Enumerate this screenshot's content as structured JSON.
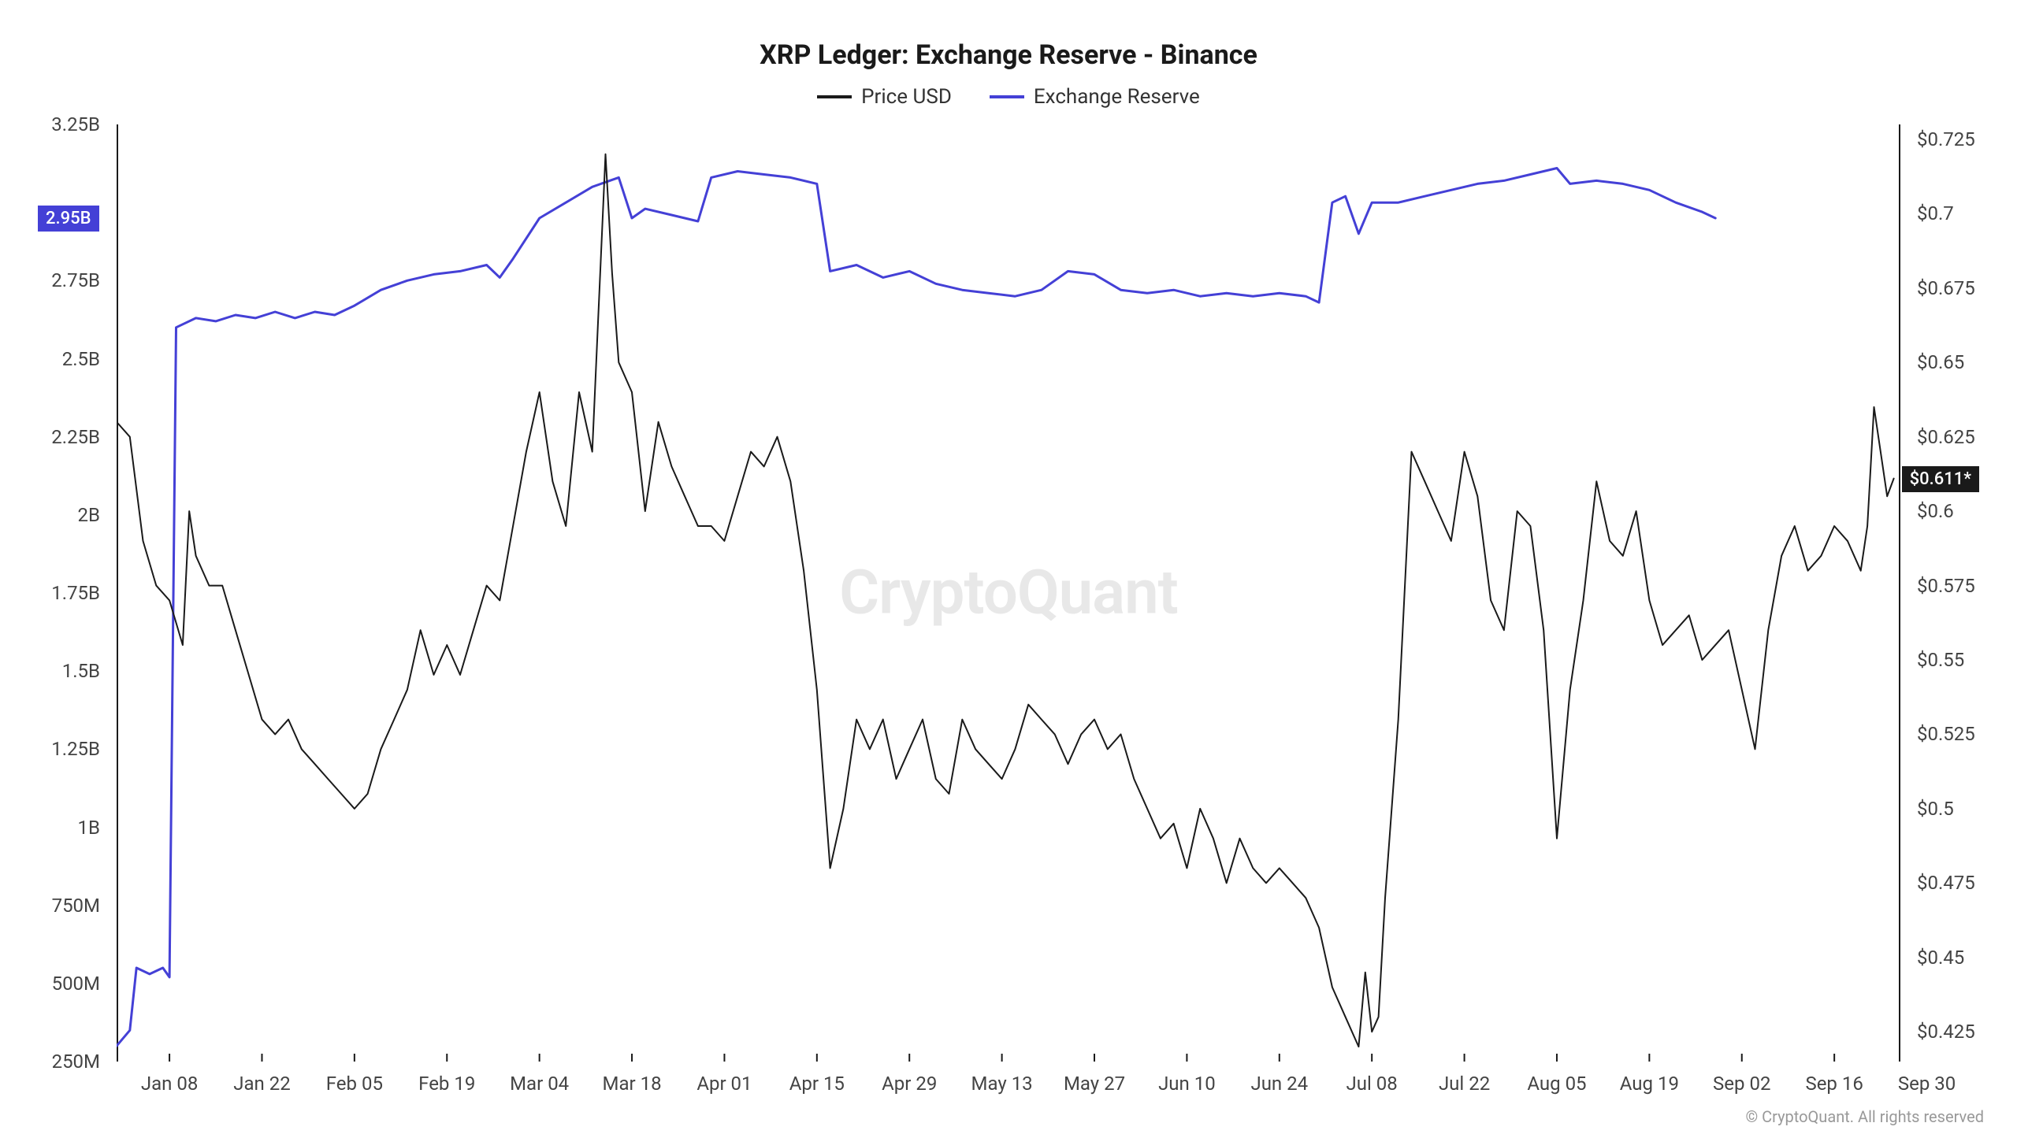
{
  "chart": {
    "type": "line-dual-axis",
    "title": "XRP Ledger: Exchange Reserve - Binance",
    "title_fontsize": 34,
    "label_fontsize": 24,
    "background_color": "#ffffff",
    "axis_color": "#1a1a1a",
    "text_color": "#444444",
    "watermark": "CryptoQuant",
    "watermark_color": "#e8e8e8",
    "copyright": "© CryptoQuant. All rights reserved",
    "legend": [
      {
        "label": "Price USD",
        "color": "#1a1a1a"
      },
      {
        "label": "Exchange Reserve",
        "color": "#4440d6"
      }
    ],
    "y_left": {
      "min": 250000000.0,
      "max": 3250000000.0,
      "ticks": [
        {
          "v": 250000000.0,
          "label": "250M"
        },
        {
          "v": 500000000.0,
          "label": "500M"
        },
        {
          "v": 750000000.0,
          "label": "750M"
        },
        {
          "v": 1000000000.0,
          "label": "1B"
        },
        {
          "v": 1250000000.0,
          "label": "1.25B"
        },
        {
          "v": 1500000000.0,
          "label": "1.5B"
        },
        {
          "v": 1750000000.0,
          "label": "1.75B"
        },
        {
          "v": 2000000000.0,
          "label": "2B"
        },
        {
          "v": 2250000000.0,
          "label": "2.25B"
        },
        {
          "v": 2500000000.0,
          "label": "2.5B"
        },
        {
          "v": 2750000000.0,
          "label": "2.75B"
        },
        {
          "v": 2950000000.0,
          "label": "2.95B",
          "badge": true,
          "badge_bg": "#4440d6"
        },
        {
          "v": 3250000000.0,
          "label": "3.25B"
        }
      ]
    },
    "y_right": {
      "min": 0.415,
      "max": 0.73,
      "ticks": [
        {
          "v": 0.425,
          "label": "$0.425"
        },
        {
          "v": 0.45,
          "label": "$0.45"
        },
        {
          "v": 0.475,
          "label": "$0.475"
        },
        {
          "v": 0.5,
          "label": "$0.5"
        },
        {
          "v": 0.525,
          "label": "$0.525"
        },
        {
          "v": 0.55,
          "label": "$0.55"
        },
        {
          "v": 0.575,
          "label": "$0.575"
        },
        {
          "v": 0.6,
          "label": "$0.6"
        },
        {
          "v": 0.611,
          "label": "$0.611*",
          "badge": true,
          "badge_bg": "#1a1a1a"
        },
        {
          "v": 0.625,
          "label": "$0.625"
        },
        {
          "v": 0.65,
          "label": "$0.65"
        },
        {
          "v": 0.675,
          "label": "$0.675"
        },
        {
          "v": 0.7,
          "label": "$0.7"
        },
        {
          "v": 0.725,
          "label": "$0.725"
        }
      ]
    },
    "x_axis": {
      "min": 0,
      "max": 270,
      "ticks": [
        {
          "v": 8,
          "label": "Jan 08"
        },
        {
          "v": 22,
          "label": "Jan 22"
        },
        {
          "v": 36,
          "label": "Feb 05"
        },
        {
          "v": 50,
          "label": "Feb 19"
        },
        {
          "v": 64,
          "label": "Mar 04"
        },
        {
          "v": 78,
          "label": "Mar 18"
        },
        {
          "v": 92,
          "label": "Apr 01"
        },
        {
          "v": 106,
          "label": "Apr 15"
        },
        {
          "v": 120,
          "label": "Apr 29"
        },
        {
          "v": 134,
          "label": "May 13"
        },
        {
          "v": 148,
          "label": "May 27"
        },
        {
          "v": 162,
          "label": "Jun 10"
        },
        {
          "v": 176,
          "label": "Jun 24"
        },
        {
          "v": 190,
          "label": "Jul 08"
        },
        {
          "v": 204,
          "label": "Jul 22"
        },
        {
          "v": 218,
          "label": "Aug 05"
        },
        {
          "v": 232,
          "label": "Aug 19"
        },
        {
          "v": 246,
          "label": "Sep 02"
        },
        {
          "v": 260,
          "label": "Sep 16"
        },
        {
          "v": 274,
          "label": "Sep 30"
        }
      ]
    },
    "series_reserve": {
      "color": "#4440d6",
      "line_width": 3,
      "data": [
        [
          0,
          300000000.0
        ],
        [
          2,
          350000000.0
        ],
        [
          3,
          550000000.0
        ],
        [
          5,
          530000000.0
        ],
        [
          7,
          550000000.0
        ],
        [
          8,
          520000000.0
        ],
        [
          9,
          2600000000.0
        ],
        [
          12,
          2630000000.0
        ],
        [
          15,
          2620000000.0
        ],
        [
          18,
          2640000000.0
        ],
        [
          21,
          2630000000.0
        ],
        [
          24,
          2650000000.0
        ],
        [
          27,
          2630000000.0
        ],
        [
          30,
          2650000000.0
        ],
        [
          33,
          2640000000.0
        ],
        [
          36,
          2670000000.0
        ],
        [
          40,
          2720000000.0
        ],
        [
          44,
          2750000000.0
        ],
        [
          48,
          2770000000.0
        ],
        [
          52,
          2780000000.0
        ],
        [
          56,
          2800000000.0
        ],
        [
          58,
          2760000000.0
        ],
        [
          60,
          2820000000.0
        ],
        [
          64,
          2950000000.0
        ],
        [
          68,
          3000000000.0
        ],
        [
          72,
          3050000000.0
        ],
        [
          76,
          3080000000.0
        ],
        [
          78,
          2950000000.0
        ],
        [
          80,
          2980000000.0
        ],
        [
          84,
          2960000000.0
        ],
        [
          88,
          2940000000.0
        ],
        [
          90,
          3080000000.0
        ],
        [
          94,
          3100000000.0
        ],
        [
          98,
          3090000000.0
        ],
        [
          102,
          3080000000.0
        ],
        [
          106,
          3060000000.0
        ],
        [
          108,
          2780000000.0
        ],
        [
          112,
          2800000000.0
        ],
        [
          116,
          2760000000.0
        ],
        [
          120,
          2780000000.0
        ],
        [
          124,
          2740000000.0
        ],
        [
          128,
          2720000000.0
        ],
        [
          132,
          2710000000.0
        ],
        [
          136,
          2700000000.0
        ],
        [
          140,
          2720000000.0
        ],
        [
          144,
          2780000000.0
        ],
        [
          148,
          2770000000.0
        ],
        [
          152,
          2720000000.0
        ],
        [
          156,
          2710000000.0
        ],
        [
          160,
          2720000000.0
        ],
        [
          164,
          2700000000.0
        ],
        [
          168,
          2710000000.0
        ],
        [
          172,
          2700000000.0
        ],
        [
          176,
          2710000000.0
        ],
        [
          180,
          2700000000.0
        ],
        [
          182,
          2680000000.0
        ],
        [
          184,
          3000000000.0
        ],
        [
          186,
          3020000000.0
        ],
        [
          188,
          2900000000.0
        ],
        [
          190,
          3000000000.0
        ],
        [
          194,
          3000000000.0
        ],
        [
          198,
          3020000000.0
        ],
        [
          202,
          3040000000.0
        ],
        [
          206,
          3060000000.0
        ],
        [
          210,
          3070000000.0
        ],
        [
          214,
          3090000000.0
        ],
        [
          218,
          3110000000.0
        ],
        [
          220,
          3060000000.0
        ],
        [
          224,
          3070000000.0
        ],
        [
          228,
          3060000000.0
        ],
        [
          232,
          3040000000.0
        ],
        [
          236,
          3000000000.0
        ],
        [
          240,
          2970000000.0
        ],
        [
          242,
          2950000000.0
        ]
      ]
    },
    "series_price": {
      "color": "#1a1a1a",
      "line_width": 2,
      "data": [
        [
          0,
          0.63
        ],
        [
          2,
          0.625
        ],
        [
          4,
          0.59
        ],
        [
          6,
          0.575
        ],
        [
          8,
          0.57
        ],
        [
          10,
          0.555
        ],
        [
          11,
          0.6
        ],
        [
          12,
          0.585
        ],
        [
          14,
          0.575
        ],
        [
          16,
          0.575
        ],
        [
          18,
          0.56
        ],
        [
          20,
          0.545
        ],
        [
          22,
          0.53
        ],
        [
          24,
          0.525
        ],
        [
          26,
          0.53
        ],
        [
          28,
          0.52
        ],
        [
          30,
          0.515
        ],
        [
          32,
          0.51
        ],
        [
          34,
          0.505
        ],
        [
          36,
          0.5
        ],
        [
          38,
          0.505
        ],
        [
          40,
          0.52
        ],
        [
          42,
          0.53
        ],
        [
          44,
          0.54
        ],
        [
          46,
          0.56
        ],
        [
          48,
          0.545
        ],
        [
          50,
          0.555
        ],
        [
          52,
          0.545
        ],
        [
          54,
          0.56
        ],
        [
          56,
          0.575
        ],
        [
          58,
          0.57
        ],
        [
          60,
          0.595
        ],
        [
          62,
          0.62
        ],
        [
          64,
          0.64
        ],
        [
          66,
          0.61
        ],
        [
          68,
          0.595
        ],
        [
          70,
          0.64
        ],
        [
          72,
          0.62
        ],
        [
          74,
          0.72
        ],
        [
          75,
          0.68
        ],
        [
          76,
          0.65
        ],
        [
          78,
          0.64
        ],
        [
          80,
          0.6
        ],
        [
          82,
          0.63
        ],
        [
          84,
          0.615
        ],
        [
          86,
          0.605
        ],
        [
          88,
          0.595
        ],
        [
          90,
          0.595
        ],
        [
          92,
          0.59
        ],
        [
          94,
          0.605
        ],
        [
          96,
          0.62
        ],
        [
          98,
          0.615
        ],
        [
          100,
          0.625
        ],
        [
          102,
          0.61
        ],
        [
          104,
          0.58
        ],
        [
          106,
          0.54
        ],
        [
          108,
          0.48
        ],
        [
          110,
          0.5
        ],
        [
          112,
          0.53
        ],
        [
          114,
          0.52
        ],
        [
          116,
          0.53
        ],
        [
          118,
          0.51
        ],
        [
          120,
          0.52
        ],
        [
          122,
          0.53
        ],
        [
          124,
          0.51
        ],
        [
          126,
          0.505
        ],
        [
          128,
          0.53
        ],
        [
          130,
          0.52
        ],
        [
          132,
          0.515
        ],
        [
          134,
          0.51
        ],
        [
          136,
          0.52
        ],
        [
          138,
          0.535
        ],
        [
          140,
          0.53
        ],
        [
          142,
          0.525
        ],
        [
          144,
          0.515
        ],
        [
          146,
          0.525
        ],
        [
          148,
          0.53
        ],
        [
          150,
          0.52
        ],
        [
          152,
          0.525
        ],
        [
          154,
          0.51
        ],
        [
          156,
          0.5
        ],
        [
          158,
          0.49
        ],
        [
          160,
          0.495
        ],
        [
          162,
          0.48
        ],
        [
          164,
          0.5
        ],
        [
          166,
          0.49
        ],
        [
          168,
          0.475
        ],
        [
          170,
          0.49
        ],
        [
          172,
          0.48
        ],
        [
          174,
          0.475
        ],
        [
          176,
          0.48
        ],
        [
          178,
          0.475
        ],
        [
          180,
          0.47
        ],
        [
          182,
          0.46
        ],
        [
          184,
          0.44
        ],
        [
          186,
          0.43
        ],
        [
          188,
          0.42
        ],
        [
          189,
          0.445
        ],
        [
          190,
          0.425
        ],
        [
          191,
          0.43
        ],
        [
          192,
          0.47
        ],
        [
          194,
          0.53
        ],
        [
          196,
          0.62
        ],
        [
          198,
          0.61
        ],
        [
          200,
          0.6
        ],
        [
          202,
          0.59
        ],
        [
          204,
          0.62
        ],
        [
          206,
          0.605
        ],
        [
          208,
          0.57
        ],
        [
          210,
          0.56
        ],
        [
          212,
          0.6
        ],
        [
          214,
          0.595
        ],
        [
          216,
          0.56
        ],
        [
          218,
          0.49
        ],
        [
          220,
          0.54
        ],
        [
          222,
          0.57
        ],
        [
          224,
          0.61
        ],
        [
          226,
          0.59
        ],
        [
          228,
          0.585
        ],
        [
          230,
          0.6
        ],
        [
          232,
          0.57
        ],
        [
          234,
          0.555
        ],
        [
          236,
          0.56
        ],
        [
          238,
          0.565
        ],
        [
          240,
          0.55
        ],
        [
          242,
          0.555
        ],
        [
          244,
          0.56
        ],
        [
          246,
          0.54
        ],
        [
          248,
          0.52
        ],
        [
          250,
          0.56
        ],
        [
          252,
          0.585
        ],
        [
          254,
          0.595
        ],
        [
          256,
          0.58
        ],
        [
          258,
          0.585
        ],
        [
          260,
          0.595
        ],
        [
          262,
          0.59
        ],
        [
          264,
          0.58
        ],
        [
          265,
          0.595
        ],
        [
          266,
          0.635
        ],
        [
          268,
          0.605
        ],
        [
          269,
          0.611
        ]
      ]
    }
  }
}
